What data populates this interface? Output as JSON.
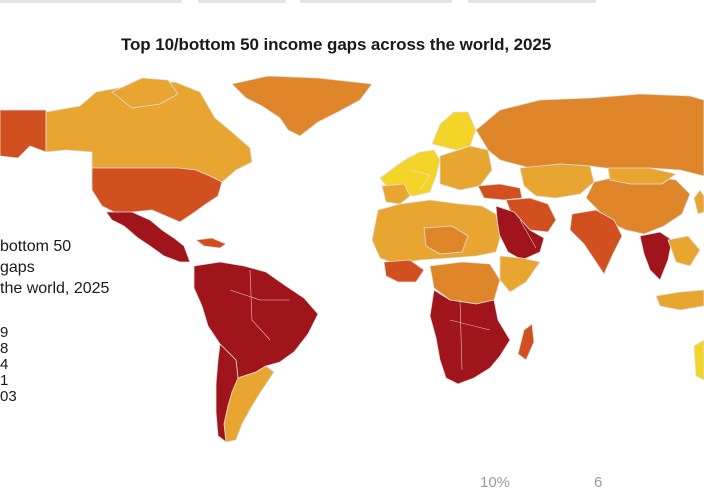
{
  "title": "Top 10/bottom 50 income gaps across the world, 2025",
  "legend": {
    "title_lines": [
      "bottom 50",
      "gaps",
      "the world, 2025"
    ],
    "values": [
      "9",
      "8",
      "4",
      "1",
      "03"
    ]
  },
  "bottom_fragments": [
    "10%",
    "6"
  ],
  "colors": {
    "darkest": "#a0141b",
    "dark_orange": "#d2501f",
    "orange": "#e0862a",
    "light_orange": "#e8a52f",
    "yellow": "#f5d42a",
    "border": "#d9d9d9"
  }
}
